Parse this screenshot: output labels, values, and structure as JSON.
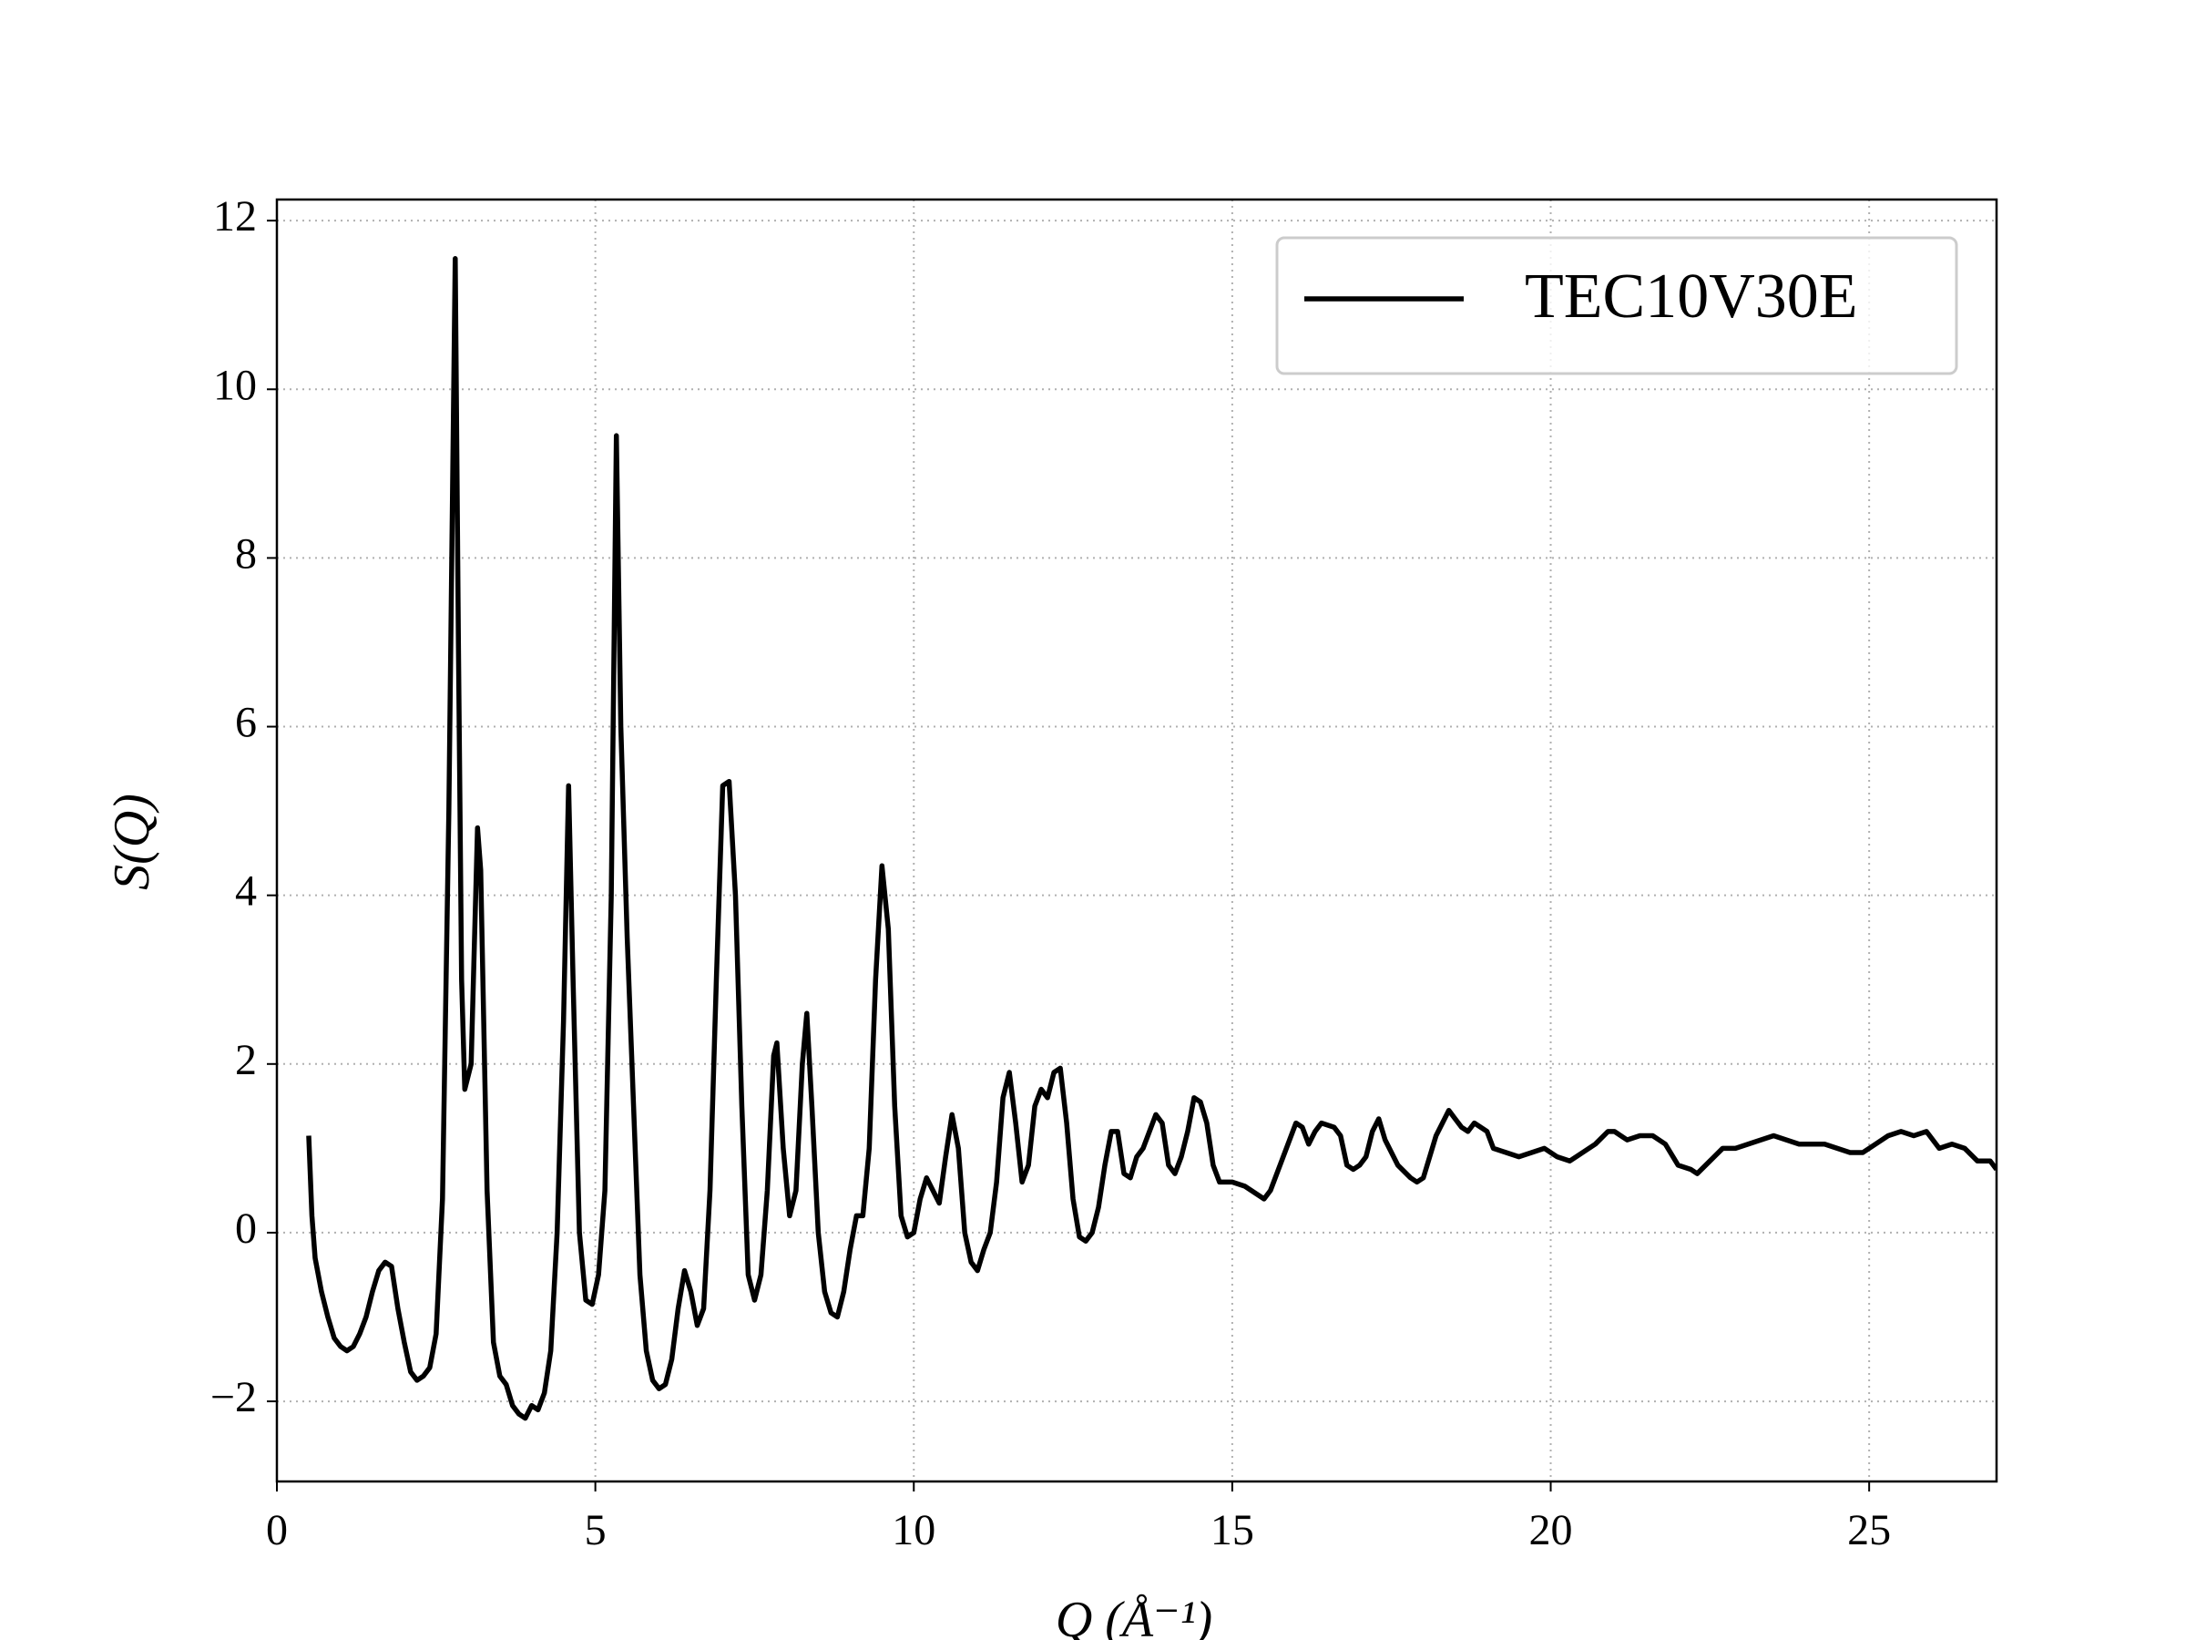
{
  "chart_data": {
    "type": "line",
    "xlabel": "Q (Å⁻¹)",
    "ylabel": "S(Q)",
    "xlim": [
      0,
      27
    ],
    "ylim": [
      -2.95,
      12.25
    ],
    "xticks": [
      0,
      5,
      10,
      15,
      20,
      25
    ],
    "yticks": [
      {
        "value": -2,
        "label": "−2"
      },
      0,
      2,
      4,
      6,
      8,
      10,
      12
    ],
    "grid": true,
    "legend": "upper right",
    "x": [
      0.5,
      0.55,
      0.6,
      0.7,
      0.8,
      0.9,
      1.0,
      1.1,
      1.2,
      1.3,
      1.4,
      1.5,
      1.6,
      1.7,
      1.8,
      1.9,
      2.0,
      2.1,
      2.2,
      2.3,
      2.4,
      2.5,
      2.6,
      2.7,
      2.8,
      2.85,
      2.9,
      2.95,
      3.05,
      3.15,
      3.2,
      3.3,
      3.4,
      3.5,
      3.6,
      3.7,
      3.8,
      3.9,
      4.0,
      4.1,
      4.2,
      4.3,
      4.4,
      4.5,
      4.58,
      4.65,
      4.75,
      4.85,
      4.95,
      5.05,
      5.15,
      5.25,
      5.33,
      5.4,
      5.5,
      5.6,
      5.7,
      5.8,
      5.9,
      6.0,
      6.1,
      6.2,
      6.3,
      6.4,
      6.5,
      6.6,
      6.7,
      6.8,
      6.9,
      7.0,
      7.1,
      7.2,
      7.3,
      7.4,
      7.5,
      7.6,
      7.7,
      7.8,
      7.85,
      7.95,
      8.05,
      8.15,
      8.25,
      8.32,
      8.4,
      8.5,
      8.6,
      8.7,
      8.8,
      8.9,
      9.0,
      9.1,
      9.2,
      9.3,
      9.4,
      9.5,
      9.6,
      9.7,
      9.8,
      9.9,
      10.0,
      10.1,
      10.2,
      10.3,
      10.4,
      10.5,
      10.6,
      10.7,
      10.8,
      10.9,
      11.0,
      11.1,
      11.2,
      11.3,
      11.4,
      11.5,
      11.6,
      11.7,
      11.8,
      11.9,
      12.0,
      12.1,
      12.2,
      12.3,
      12.4,
      12.5,
      12.6,
      12.7,
      12.8,
      12.9,
      13.0,
      13.1,
      13.2,
      13.3,
      13.4,
      13.5,
      13.6,
      13.7,
      13.8,
      13.9,
      14.0,
      14.1,
      14.2,
      14.3,
      14.4,
      14.5,
      14.6,
      14.7,
      14.8,
      14.9,
      15.0,
      15.2,
      15.4,
      15.5,
      15.6,
      15.8,
      15.9,
      16.0,
      16.1,
      16.2,
      16.3,
      16.4,
      16.6,
      16.7,
      16.8,
      16.9,
      17.0,
      17.1,
      17.2,
      17.3,
      17.4,
      17.5,
      17.6,
      17.8,
      17.9,
      18.0,
      18.1,
      18.2,
      18.3,
      18.4,
      18.5,
      18.6,
      18.7,
      18.8,
      19.0,
      19.1,
      19.3,
      19.5,
      19.7,
      19.9,
      20.1,
      20.3,
      20.5,
      20.7,
      20.9,
      21.0,
      21.2,
      21.4,
      21.6,
      21.8,
      22.0,
      22.2,
      22.3,
      22.5,
      22.7,
      22.9,
      23.1,
      23.3,
      23.5,
      23.7,
      23.9,
      24.1,
      24.3,
      24.5,
      24.7,
      24.9,
      25.1,
      25.3,
      25.5,
      25.7,
      25.9,
      26.1,
      26.3,
      26.5,
      26.7,
      26.9,
      27.0
    ],
    "series": [
      {
        "name": "TEC10V30E",
        "color": "#000000",
        "values": [
          1.15,
          0.2,
          -0.3,
          -0.7,
          -1.0,
          -1.25,
          -1.35,
          -1.4,
          -1.35,
          -1.2,
          -1.0,
          -0.7,
          -0.45,
          -0.35,
          -0.4,
          -0.9,
          -1.3,
          -1.65,
          -1.75,
          -1.7,
          -1.6,
          -1.2,
          0.4,
          5.0,
          11.55,
          7.0,
          3.0,
          1.7,
          2.0,
          4.8,
          4.3,
          0.5,
          -1.3,
          -1.7,
          -1.8,
          -2.05,
          -2.15,
          -2.2,
          -2.05,
          -2.1,
          -1.9,
          -1.4,
          0.0,
          2.5,
          5.3,
          3.0,
          0.0,
          -0.8,
          -0.85,
          -0.5,
          0.5,
          4.0,
          9.45,
          6.0,
          3.5,
          1.5,
          -0.5,
          -1.4,
          -1.75,
          -1.85,
          -1.8,
          -1.5,
          -0.9,
          -0.45,
          -0.7,
          -1.1,
          -0.9,
          0.5,
          3.0,
          5.3,
          5.35,
          4.0,
          1.5,
          -0.5,
          -0.8,
          -0.5,
          0.5,
          2.1,
          2.25,
          1.0,
          0.2,
          0.5,
          2.0,
          2.6,
          1.5,
          0.0,
          -0.7,
          -0.95,
          -1.0,
          -0.7,
          -0.2,
          0.2,
          0.2,
          1.0,
          3.0,
          4.35,
          3.6,
          1.5,
          0.2,
          -0.05,
          0.0,
          0.4,
          0.65,
          0.5,
          0.35,
          0.9,
          1.4,
          1.0,
          0.0,
          -0.35,
          -0.45,
          -0.2,
          0.0,
          0.6,
          1.6,
          1.9,
          1.3,
          0.6,
          0.8,
          1.5,
          1.7,
          1.6,
          1.9,
          1.95,
          1.3,
          0.4,
          -0.05,
          -0.1,
          0.0,
          0.3,
          0.8,
          1.2,
          1.2,
          0.7,
          0.65,
          0.9,
          1.0,
          1.2,
          1.4,
          1.3,
          0.8,
          0.7,
          0.9,
          1.2,
          1.6,
          1.55,
          1.3,
          0.8,
          0.6,
          0.6,
          0.6,
          0.55,
          0.45,
          0.4,
          0.5,
          0.9,
          1.1,
          1.3,
          1.25,
          1.05,
          1.2,
          1.3,
          1.25,
          1.15,
          0.8,
          0.75,
          0.8,
          0.9,
          1.2,
          1.35,
          1.1,
          0.95,
          0.8,
          0.65,
          0.6,
          0.65,
          0.9,
          1.15,
          1.3,
          1.45,
          1.35,
          1.25,
          1.2,
          1.3,
          1.2,
          1.0,
          0.95,
          0.9,
          0.95,
          1.0,
          0.9,
          0.85,
          0.95,
          1.05,
          1.2,
          1.2,
          1.1,
          1.15,
          1.15,
          1.05,
          0.8,
          0.75,
          0.7,
          0.85,
          1.0,
          1.0,
          1.05,
          1.1,
          1.15,
          1.1,
          1.05,
          1.05,
          1.05,
          1.0,
          0.95,
          0.95,
          1.05,
          1.15,
          1.2,
          1.15,
          1.2,
          1.0,
          1.05,
          1.0,
          0.85,
          0.85,
          0.75
        ]
      }
    ]
  }
}
